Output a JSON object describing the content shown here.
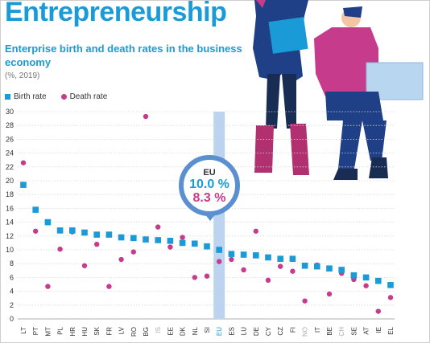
{
  "title": "Entrepreneurship",
  "subtitle": "Enterprise birth and death rates in the business economy",
  "unit": "(%, 2019)",
  "legend": {
    "birth": "Birth rate",
    "death": "Death rate"
  },
  "callout": {
    "label": "EU",
    "birth": "10.0 %",
    "death": "8.3 %"
  },
  "colors": {
    "birth": "#1a9bd7",
    "death": "#c63b8c",
    "highlight": "#bcd4f0",
    "grayLabel": "#aaaaaa"
  },
  "chart_data": {
    "type": "scatter",
    "categories": [
      "LT",
      "PT",
      "MT",
      "PL",
      "HR",
      "HU",
      "SK",
      "FR",
      "LV",
      "RO",
      "BG",
      "IS",
      "EE",
      "DK",
      "NL",
      "SI",
      "EU",
      "ES",
      "LU",
      "DE",
      "CY",
      "CZ",
      "FI",
      "NO",
      "IT",
      "BE",
      "CH",
      "SE",
      "AT",
      "IE",
      "EL"
    ],
    "gray_categories": [
      "IS",
      "NO",
      "CH"
    ],
    "highlight_category": "EU",
    "series": [
      {
        "name": "Birth rate",
        "marker": "square",
        "values": [
          19.4,
          15.8,
          14.0,
          12.8,
          12.8,
          12.5,
          12.2,
          12.2,
          11.8,
          11.7,
          11.5,
          11.4,
          11.3,
          11.0,
          10.9,
          10.5,
          10.0,
          9.4,
          9.3,
          9.2,
          8.9,
          8.7,
          8.7,
          7.7,
          7.6,
          7.3,
          7.1,
          6.3,
          6.0,
          5.5,
          4.9
        ]
      },
      {
        "name": "Death rate",
        "marker": "circle",
        "values": [
          22.6,
          12.7,
          4.7,
          10.1,
          12.6,
          7.7,
          10.8,
          4.7,
          8.6,
          9.7,
          29.3,
          13.3,
          10.4,
          11.8,
          6.0,
          6.2,
          8.3,
          8.6,
          7.1,
          12.7,
          5.6,
          7.6,
          6.9,
          2.6,
          7.8,
          3.6,
          6.6,
          5.7,
          4.8,
          1.1,
          3.1
        ]
      }
    ],
    "ylim": [
      0,
      30
    ],
    "yticks": [
      0,
      2,
      4,
      6,
      8,
      10,
      12,
      14,
      16,
      18,
      20,
      22,
      24,
      26,
      28,
      30
    ],
    "grid": true,
    "legend_position": "top-left"
  }
}
